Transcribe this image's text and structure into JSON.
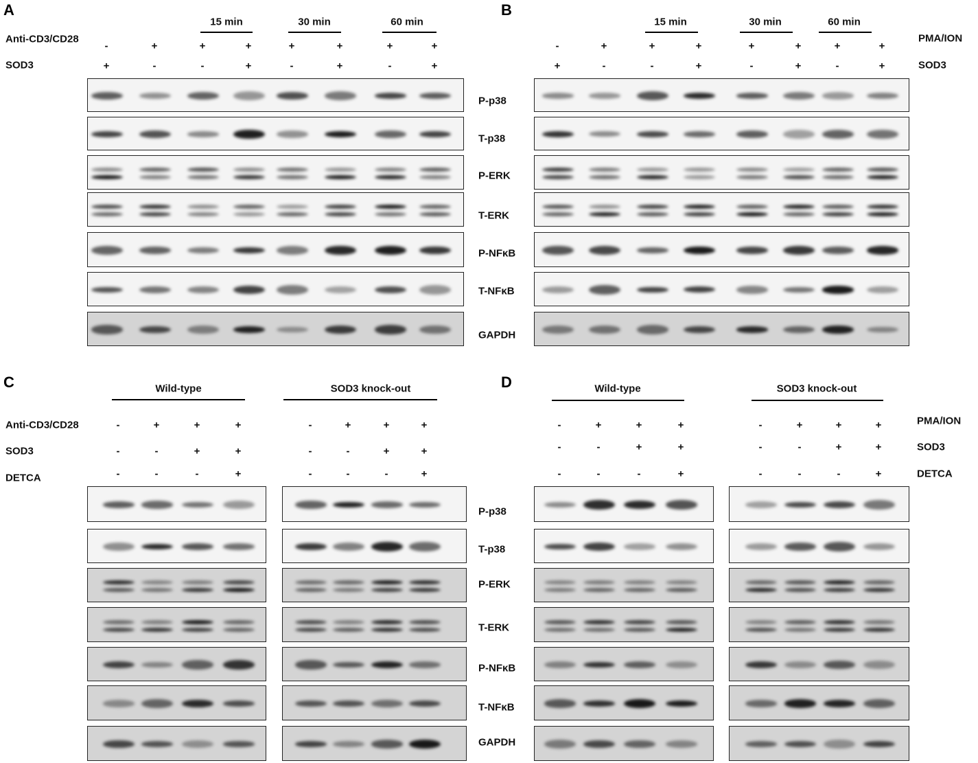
{
  "panels": [
    {
      "letter": "A",
      "time_labels": [
        "15 min",
        "30 min",
        "60 min"
      ],
      "conditions": [
        {
          "name": "Anti-CD3/CD28",
          "signs": [
            "-",
            "+",
            "+",
            "+",
            "+",
            "+",
            "+",
            "+"
          ]
        },
        {
          "name": "SOD3",
          "signs": [
            "+",
            "-",
            "-",
            "+",
            "-",
            "+",
            "-",
            "+"
          ]
        }
      ],
      "blots": [
        "P-p38",
        "T-p38",
        "P-ERK",
        "T-ERK",
        "P-NFκB",
        "T-NFκB",
        "GAPDH"
      ]
    },
    {
      "letter": "B",
      "time_labels": [
        "15 min",
        "30 min",
        "60 min"
      ],
      "conditions": [
        {
          "name": "PMA/ION",
          "signs": [
            "-",
            "+",
            "+",
            "+",
            "+",
            "+",
            "+",
            "+"
          ]
        },
        {
          "name": "SOD3",
          "signs": [
            "+",
            "-",
            "-",
            "+",
            "-",
            "+",
            "-",
            "+"
          ]
        }
      ]
    },
    {
      "letter": "C",
      "groups": [
        "Wild-type",
        "SOD3 knock-out"
      ],
      "conditions": [
        {
          "name": "Anti-CD3/CD28",
          "signs": [
            "-",
            "+",
            "+",
            "+",
            "-",
            "+",
            "+",
            "+"
          ]
        },
        {
          "name": "SOD3",
          "signs": [
            "-",
            "-",
            "+",
            "+",
            "-",
            "-",
            "+",
            "+"
          ]
        },
        {
          "name": "DETCA",
          "signs": [
            "-",
            "-",
            "-",
            "+",
            "-",
            "-",
            "-",
            "+"
          ]
        }
      ],
      "blots": [
        "P-p38",
        "T-p38",
        "P-ERK",
        "T-ERK",
        "P-NFκB",
        "T-NFκB",
        "GAPDH"
      ]
    },
    {
      "letter": "D",
      "groups": [
        "Wild-type",
        "SOD3 knock-out"
      ],
      "conditions": [
        {
          "name": "PMA/ION",
          "signs": [
            "-",
            "+",
            "+",
            "+",
            "-",
            "+",
            "+",
            "+"
          ]
        },
        {
          "name": "SOD3",
          "signs": [
            "-",
            "-",
            "+",
            "+",
            "-",
            "-",
            "+",
            "+"
          ]
        },
        {
          "name": "DETCA",
          "signs": [
            "-",
            "-",
            "-",
            "+",
            "-",
            "-",
            "-",
            "+"
          ]
        }
      ]
    }
  ]
}
